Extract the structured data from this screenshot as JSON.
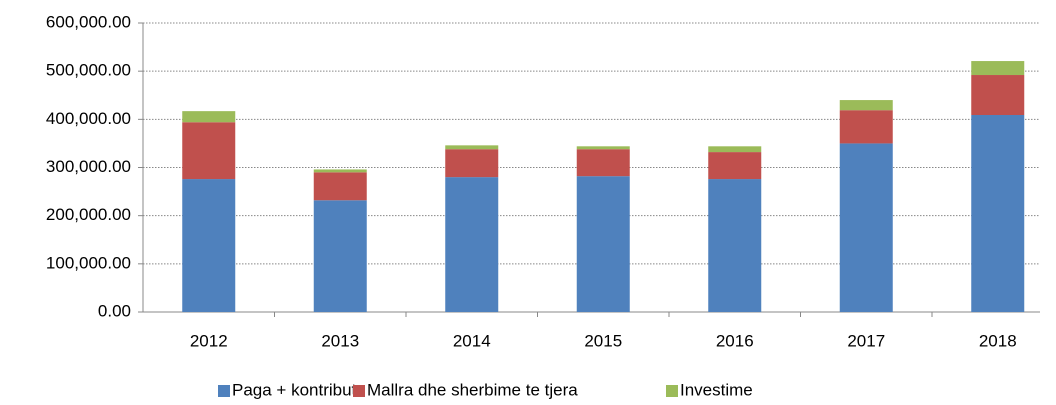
{
  "chart_data": {
    "type": "stacked_bar",
    "categories": [
      "2012",
      "2013",
      "2014",
      "2015",
      "2016",
      "2017",
      "2018"
    ],
    "series": [
      {
        "name": "Paga + kontribut",
        "color": "#4f81bd",
        "values": [
          276000,
          232000,
          280000,
          282000,
          276000,
          350000,
          409000
        ]
      },
      {
        "name": "Mallra dhe sherbime te tjera",
        "color": "#c0504d",
        "values": [
          118000,
          58000,
          58000,
          56000,
          56000,
          69000,
          83000
        ]
      },
      {
        "name": "Investime",
        "color": "#9bbb59",
        "values": [
          23000,
          6000,
          8000,
          6000,
          12000,
          21000,
          29000
        ]
      }
    ],
    "ylim": [
      0,
      600000
    ],
    "yticks": [
      {
        "value": 0,
        "label": "0.00"
      },
      {
        "value": 100000,
        "label": "100,000.00"
      },
      {
        "value": 200000,
        "label": "200,000.00"
      },
      {
        "value": 300000,
        "label": "300,000.00"
      },
      {
        "value": 400000,
        "label": "400,000.00"
      },
      {
        "value": 500000,
        "label": "500,000.00"
      },
      {
        "value": 600000,
        "label": "600,000.00"
      }
    ],
    "grid": true,
    "legend": "bottom"
  }
}
